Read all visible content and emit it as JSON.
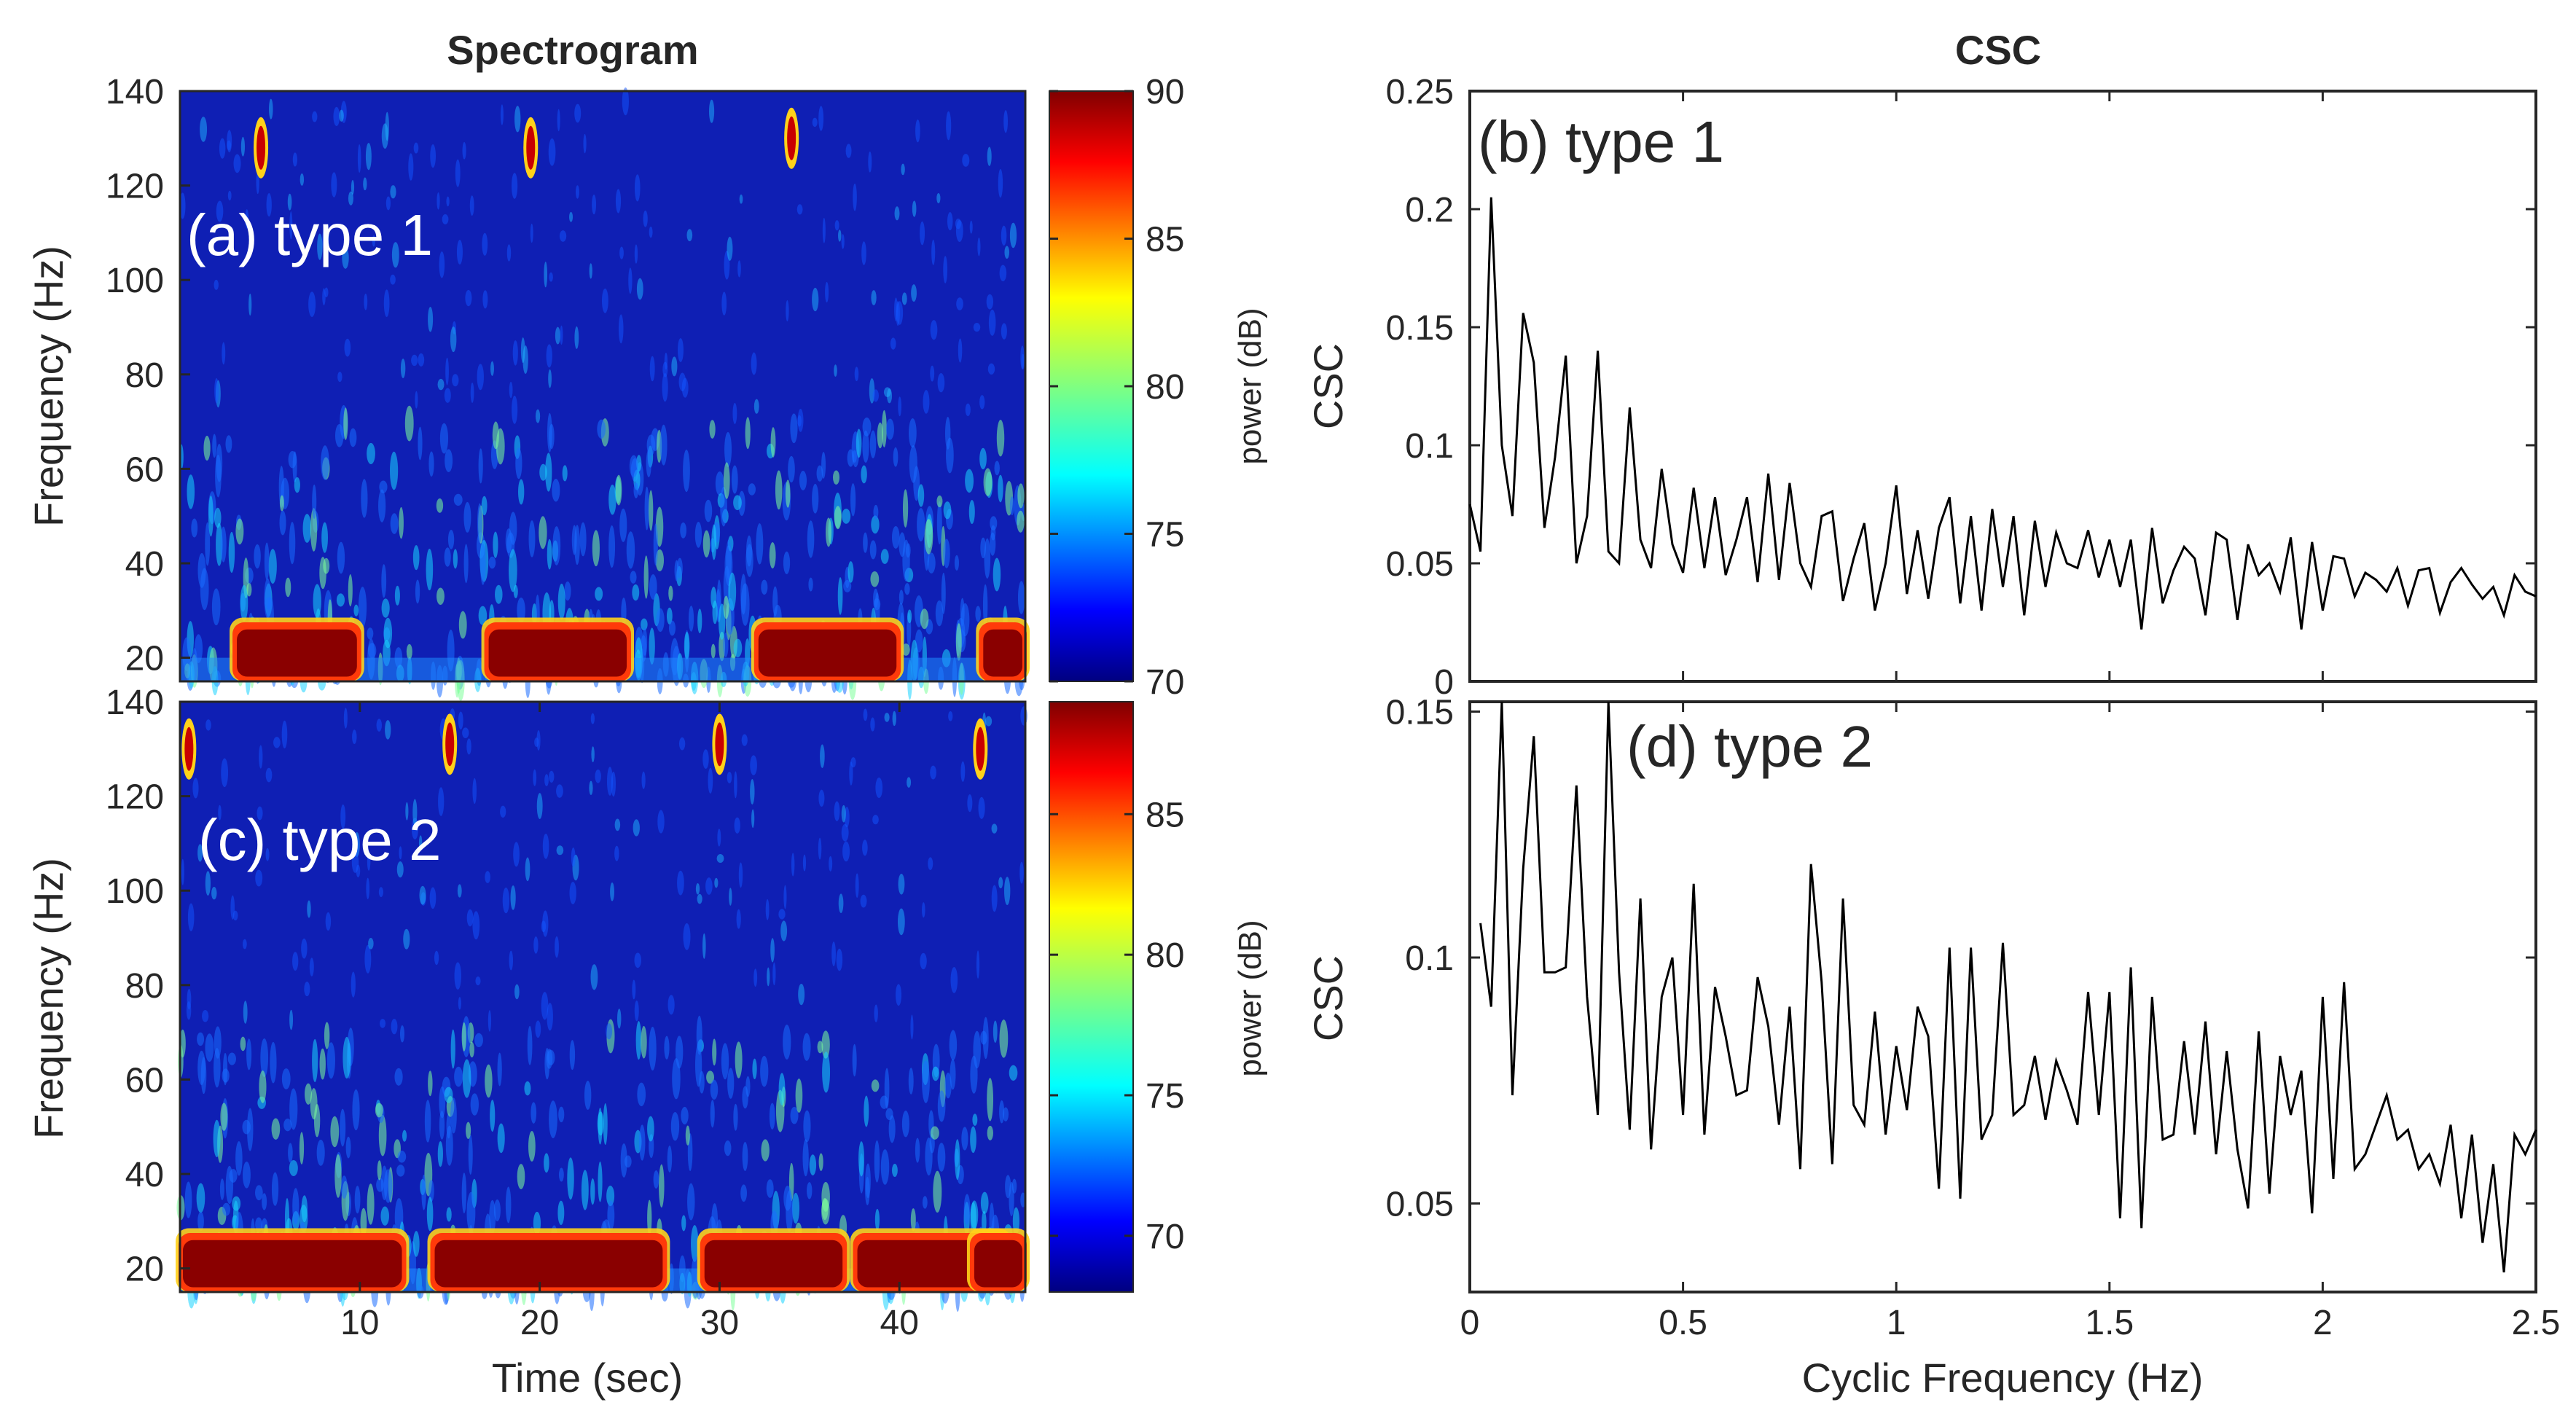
{
  "titles": {
    "left": "Spectrogram",
    "right": "CSC"
  },
  "chart_data": [
    {
      "id": "a",
      "type": "heatmap",
      "panel_label": "(a) type 1",
      "ylabel": "Frequency (Hz)",
      "xlabel": "",
      "xlim": [
        0,
        47
      ],
      "ylim": [
        15,
        140
      ],
      "yticks": [
        "20",
        "40",
        "60",
        "80",
        "100",
        "120",
        "140"
      ],
      "ytick_values": [
        20,
        40,
        60,
        80,
        100,
        120,
        140
      ],
      "xticks": [],
      "colorbar": {
        "label": "power (dB)",
        "range": [
          70,
          90
        ],
        "ticks": [
          "70",
          "75",
          "80",
          "85",
          "90"
        ],
        "tick_values": [
          70,
          75,
          80,
          85,
          90
        ]
      },
      "bursts": [
        [
          3,
          10
        ],
        [
          17,
          25
        ],
        [
          32,
          40
        ],
        [
          44.5,
          47
        ]
      ],
      "hf_events": [
        [
          4.5,
          128
        ],
        [
          19.5,
          128
        ],
        [
          34,
          130
        ]
      ]
    },
    {
      "id": "b",
      "type": "line",
      "panel_label": "(b) type 1",
      "ylabel": "CSC",
      "xlabel": "",
      "xlim": [
        0,
        2.5
      ],
      "ylim": [
        0,
        0.25
      ],
      "yticks": [
        "0",
        "0.05",
        "0.1",
        "0.15",
        "0.2",
        "0.25"
      ],
      "ytick_values": [
        0,
        0.05,
        0.1,
        0.15,
        0.2,
        0.25
      ],
      "xticks": [],
      "xtick_values": [
        0,
        0.5,
        1,
        1.5,
        2,
        2.5
      ],
      "x": [
        0.0,
        0.025,
        0.05,
        0.075,
        0.1,
        0.125,
        0.15,
        0.175,
        0.2,
        0.225,
        0.25,
        0.275,
        0.3,
        0.325,
        0.35,
        0.375,
        0.4,
        0.425,
        0.45,
        0.475,
        0.5,
        0.525,
        0.55,
        0.575,
        0.6,
        0.625,
        0.65,
        0.675,
        0.7,
        0.725,
        0.75,
        0.775,
        0.8,
        0.825,
        0.85,
        0.875,
        0.9,
        0.925,
        0.95,
        0.975,
        1.0,
        1.025,
        1.05,
        1.075,
        1.1,
        1.125,
        1.15,
        1.175,
        1.2,
        1.225,
        1.25,
        1.275,
        1.3,
        1.325,
        1.35,
        1.375,
        1.4,
        1.425,
        1.45,
        1.475,
        1.5,
        1.525,
        1.55,
        1.575,
        1.6,
        1.625,
        1.65,
        1.675,
        1.7,
        1.725,
        1.75,
        1.775,
        1.8,
        1.825,
        1.85,
        1.875,
        1.9,
        1.925,
        1.95,
        1.975,
        2.0,
        2.025,
        2.05,
        2.075,
        2.1,
        2.125,
        2.15,
        2.175,
        2.2,
        2.225,
        2.25,
        2.275,
        2.3,
        2.325,
        2.35,
        2.375,
        2.4,
        2.425,
        2.45,
        2.475,
        2.5
      ],
      "y": [
        0.075,
        0.055,
        0.205,
        0.1,
        0.07,
        0.156,
        0.135,
        0.065,
        0.095,
        0.138,
        0.05,
        0.07,
        0.14,
        0.055,
        0.05,
        0.116,
        0.06,
        0.048,
        0.09,
        0.058,
        0.046,
        0.082,
        0.048,
        0.078,
        0.045,
        0.06,
        0.078,
        0.042,
        0.088,
        0.043,
        0.084,
        0.05,
        0.04,
        0.07,
        0.072,
        0.034,
        0.052,
        0.067,
        0.03,
        0.05,
        0.083,
        0.037,
        0.064,
        0.035,
        0.065,
        0.078,
        0.033,
        0.07,
        0.03,
        0.073,
        0.04,
        0.07,
        0.028,
        0.068,
        0.04,
        0.063,
        0.05,
        0.048,
        0.064,
        0.044,
        0.06,
        0.04,
        0.06,
        0.022,
        0.065,
        0.033,
        0.047,
        0.057,
        0.052,
        0.028,
        0.063,
        0.06,
        0.026,
        0.058,
        0.045,
        0.05,
        0.038,
        0.061,
        0.022,
        0.059,
        0.03,
        0.053,
        0.052,
        0.036,
        0.046,
        0.043,
        0.038,
        0.048,
        0.032,
        0.047,
        0.048,
        0.029,
        0.042,
        0.048,
        0.041,
        0.035,
        0.04,
        0.028,
        0.045,
        0.038,
        0.036
      ]
    },
    {
      "id": "c",
      "type": "heatmap",
      "panel_label": "(c) type 2",
      "ylabel": "Frequency (Hz)",
      "xlabel": "Time (sec)",
      "xlim": [
        0,
        47
      ],
      "ylim": [
        15,
        140
      ],
      "yticks": [
        "20",
        "40",
        "60",
        "80",
        "100",
        "120",
        "140"
      ],
      "ytick_values": [
        20,
        40,
        60,
        80,
        100,
        120,
        140
      ],
      "xticks": [
        "10",
        "20",
        "30",
        "40"
      ],
      "xtick_values": [
        10,
        20,
        30,
        40
      ],
      "colorbar": {
        "label": "power (dB)",
        "range": [
          68,
          89
        ],
        "ticks": [
          "70",
          "75",
          "80",
          "85"
        ],
        "tick_values": [
          70,
          75,
          80,
          85
        ]
      },
      "bursts": [
        [
          0,
          12.5
        ],
        [
          14,
          27
        ],
        [
          29,
          37
        ],
        [
          37.5,
          46
        ],
        [
          44,
          47
        ]
      ],
      "hf_events": [
        [
          0.5,
          130
        ],
        [
          15,
          131
        ],
        [
          30,
          131
        ],
        [
          44.5,
          130
        ]
      ]
    },
    {
      "id": "d",
      "type": "line",
      "panel_label": "(d) type 2",
      "ylabel": "CSC",
      "xlabel": "Cyclic Frequency (Hz)",
      "xlim": [
        0,
        2.5
      ],
      "ylim": [
        0.032,
        0.152
      ],
      "yticks": [
        "0.05",
        "0.1",
        "0.15"
      ],
      "ytick_values": [
        0.05,
        0.1,
        0.15
      ],
      "xticks": [
        "0",
        "0.5",
        "1",
        "1.5",
        "2",
        "2.5"
      ],
      "xtick_values": [
        0,
        0.5,
        1,
        1.5,
        2,
        2.5
      ],
      "x": [
        0.025,
        0.05,
        0.075,
        0.1,
        0.125,
        0.15,
        0.175,
        0.2,
        0.225,
        0.25,
        0.275,
        0.3,
        0.325,
        0.35,
        0.375,
        0.4,
        0.425,
        0.45,
        0.475,
        0.5,
        0.525,
        0.55,
        0.575,
        0.6,
        0.625,
        0.65,
        0.675,
        0.7,
        0.725,
        0.75,
        0.775,
        0.8,
        0.825,
        0.85,
        0.875,
        0.9,
        0.925,
        0.95,
        0.975,
        1.0,
        1.025,
        1.05,
        1.075,
        1.1,
        1.125,
        1.15,
        1.175,
        1.2,
        1.225,
        1.25,
        1.275,
        1.3,
        1.325,
        1.35,
        1.375,
        1.4,
        1.425,
        1.45,
        1.475,
        1.5,
        1.525,
        1.55,
        1.575,
        1.6,
        1.625,
        1.65,
        1.675,
        1.7,
        1.725,
        1.75,
        1.775,
        1.8,
        1.825,
        1.85,
        1.875,
        1.9,
        1.925,
        1.95,
        1.975,
        2.0,
        2.025,
        2.05,
        2.075,
        2.1,
        2.125,
        2.15,
        2.175,
        2.2,
        2.225,
        2.25,
        2.275,
        2.3,
        2.325,
        2.35,
        2.375,
        2.4,
        2.425,
        2.45,
        2.475,
        2.5
      ],
      "y": [
        0.107,
        0.09,
        0.152,
        0.072,
        0.118,
        0.145,
        0.097,
        0.097,
        0.098,
        0.135,
        0.092,
        0.068,
        0.152,
        0.097,
        0.065,
        0.112,
        0.061,
        0.092,
        0.1,
        0.068,
        0.115,
        0.064,
        0.094,
        0.084,
        0.072,
        0.073,
        0.096,
        0.086,
        0.066,
        0.09,
        0.057,
        0.119,
        0.095,
        0.058,
        0.112,
        0.07,
        0.066,
        0.089,
        0.064,
        0.082,
        0.069,
        0.09,
        0.084,
        0.053,
        0.102,
        0.051,
        0.102,
        0.063,
        0.068,
        0.103,
        0.068,
        0.07,
        0.08,
        0.067,
        0.079,
        0.073,
        0.066,
        0.093,
        0.068,
        0.093,
        0.047,
        0.098,
        0.045,
        0.092,
        0.063,
        0.064,
        0.083,
        0.064,
        0.087,
        0.06,
        0.081,
        0.061,
        0.049,
        0.085,
        0.052,
        0.08,
        0.068,
        0.077,
        0.048,
        0.092,
        0.055,
        0.095,
        0.057,
        0.06,
        0.066,
        0.072,
        0.063,
        0.065,
        0.057,
        0.06,
        0.054,
        0.066,
        0.047,
        0.064,
        0.042,
        0.058,
        0.036,
        0.064,
        0.06,
        0.065
      ]
    }
  ]
}
